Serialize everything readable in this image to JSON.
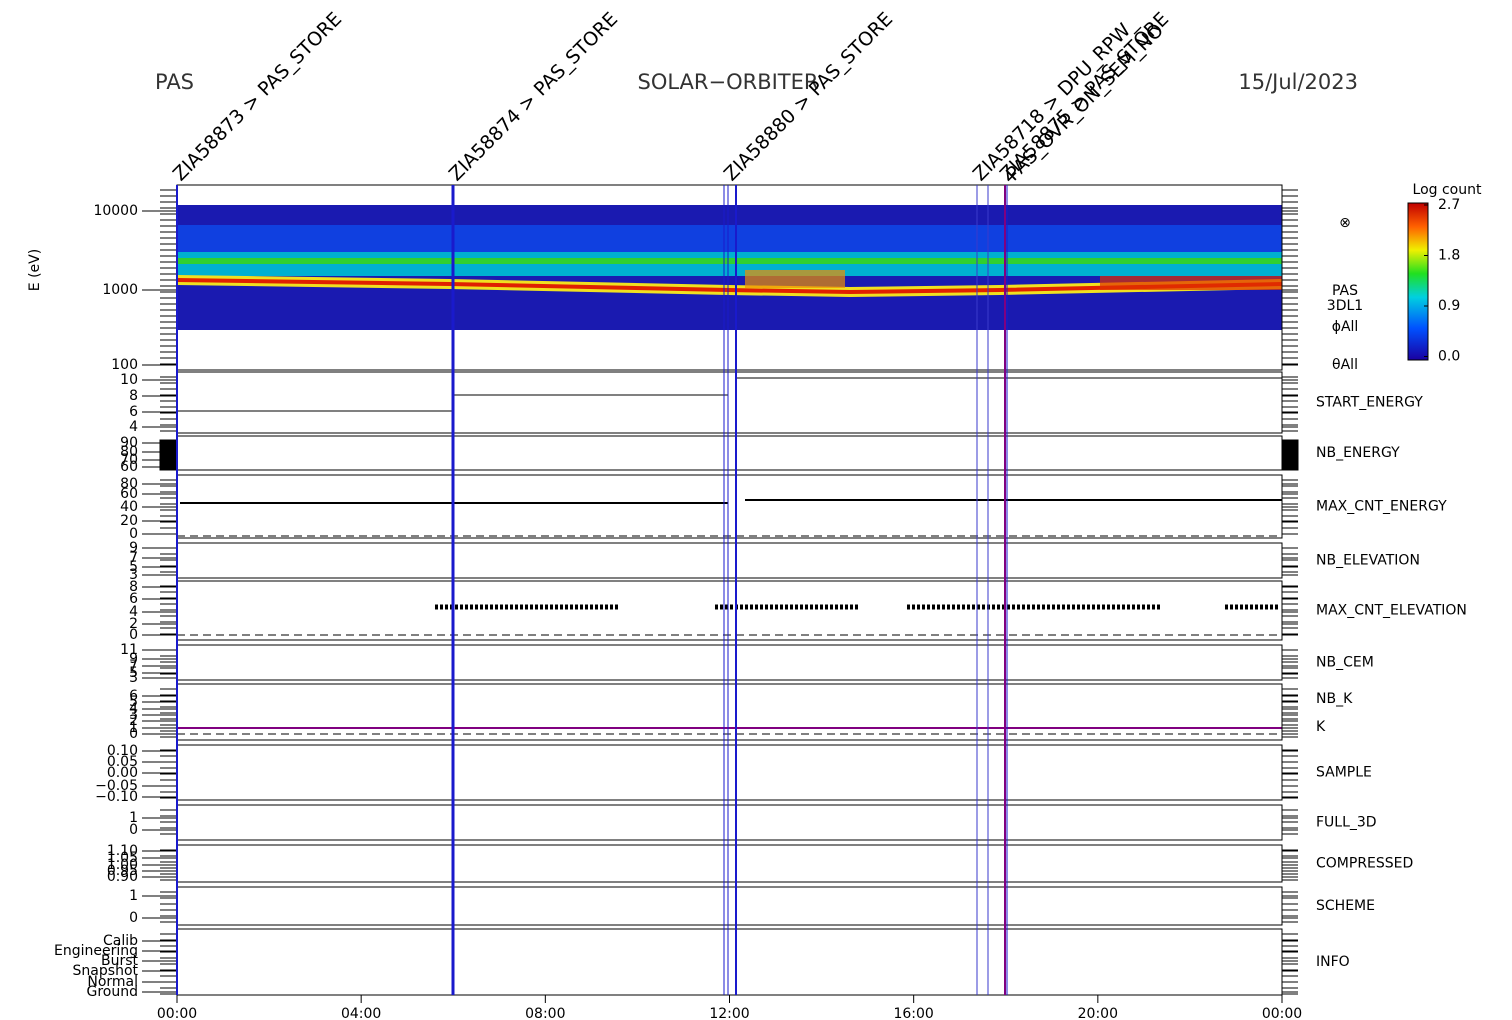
{
  "header": {
    "left": "PAS",
    "center": "SOLAR−ORBITER",
    "right": "15/Jul/2023"
  },
  "ylabel": "E (eV)",
  "spectrogram_labels": [
    "PAS",
    "3DL1",
    "ϕAll",
    "θAll"
  ],
  "colorbar": {
    "title": "Log count",
    "ticks": [
      "2.7",
      "1.8",
      "0.9",
      "0.0"
    ]
  },
  "time_ticks": [
    "00:00",
    "04:00",
    "08:00",
    "12:00",
    "16:00",
    "20:00",
    "00:00"
  ],
  "panels": [
    {
      "ticks": [
        "10000",
        "1000",
        "100"
      ]
    },
    {
      "name": "START_ENERGY",
      "color": "#000000",
      "ticks": [
        "10",
        "8",
        "6",
        "4"
      ]
    },
    {
      "name": "NB_ENERGY",
      "color": "#1a1aa6",
      "ticks": [
        "90",
        "80",
        "70",
        "60"
      ]
    },
    {
      "name": "MAX_CNT_ENERGY",
      "color": "#000000",
      "ticks": [
        "80",
        "60",
        "40",
        "20",
        "0"
      ]
    },
    {
      "name": "NB_ELEVATION",
      "color": "#1a1aa6",
      "ticks": [
        "9",
        "7",
        "5",
        "3"
      ]
    },
    {
      "name": "MAX_CNT_ELEVATION",
      "color": "#000000",
      "ticks": [
        "8",
        "6",
        "4",
        "2",
        "0"
      ]
    },
    {
      "name": "NB_CEM",
      "color": "#1a1aa6",
      "ticks": [
        "11",
        "9",
        "7",
        "5",
        "3"
      ]
    },
    {
      "name": "NB_K",
      "name2": "K",
      "color": "#d62020",
      "color2": "#1a1aa6",
      "ticks": [
        "6",
        "5",
        "4",
        "3",
        "2",
        "1",
        "0"
      ]
    },
    {
      "name": "SAMPLE",
      "color": "#1a1aa6",
      "ticks": [
        "0.10",
        "0.05",
        "0.00",
        "−0.05",
        "−0.10"
      ]
    },
    {
      "name": "FULL_3D",
      "color": "#1a1aa6",
      "ticks": [
        "1",
        "0"
      ]
    },
    {
      "name": "COMPRESSED",
      "color": "#000000",
      "ticks": [
        "1.10",
        "1.05",
        "1.00",
        "0.95",
        "0.90"
      ]
    },
    {
      "name": "SCHEME",
      "color": "#000000",
      "ticks": [
        "1",
        "0"
      ]
    },
    {
      "name": "INFO",
      "color": "#000000",
      "ticks": [
        "Calib",
        "Engineering",
        "Burst",
        "Snapshot",
        "Normal",
        "Ground"
      ]
    }
  ],
  "events": [
    {
      "text": "ZIA58873 > PAS_STORE",
      "color": "#1a1acc"
    },
    {
      "text": "ZIA58874 > PAS_STORE",
      "color": "#1a1acc"
    },
    {
      "text": "ZIA58880 > PAS_STORE",
      "color": "#1a1acc"
    },
    {
      "text": "ZIA58718 > DPU_RPW_",
      "color": "#3a3acc"
    },
    {
      "text": "ZIA58875 > PAS_STORE",
      "color": "#1a1acc"
    },
    {
      "text": "PAS_OVR_ON_SEM_NO",
      "color": "#d62020"
    }
  ]
}
